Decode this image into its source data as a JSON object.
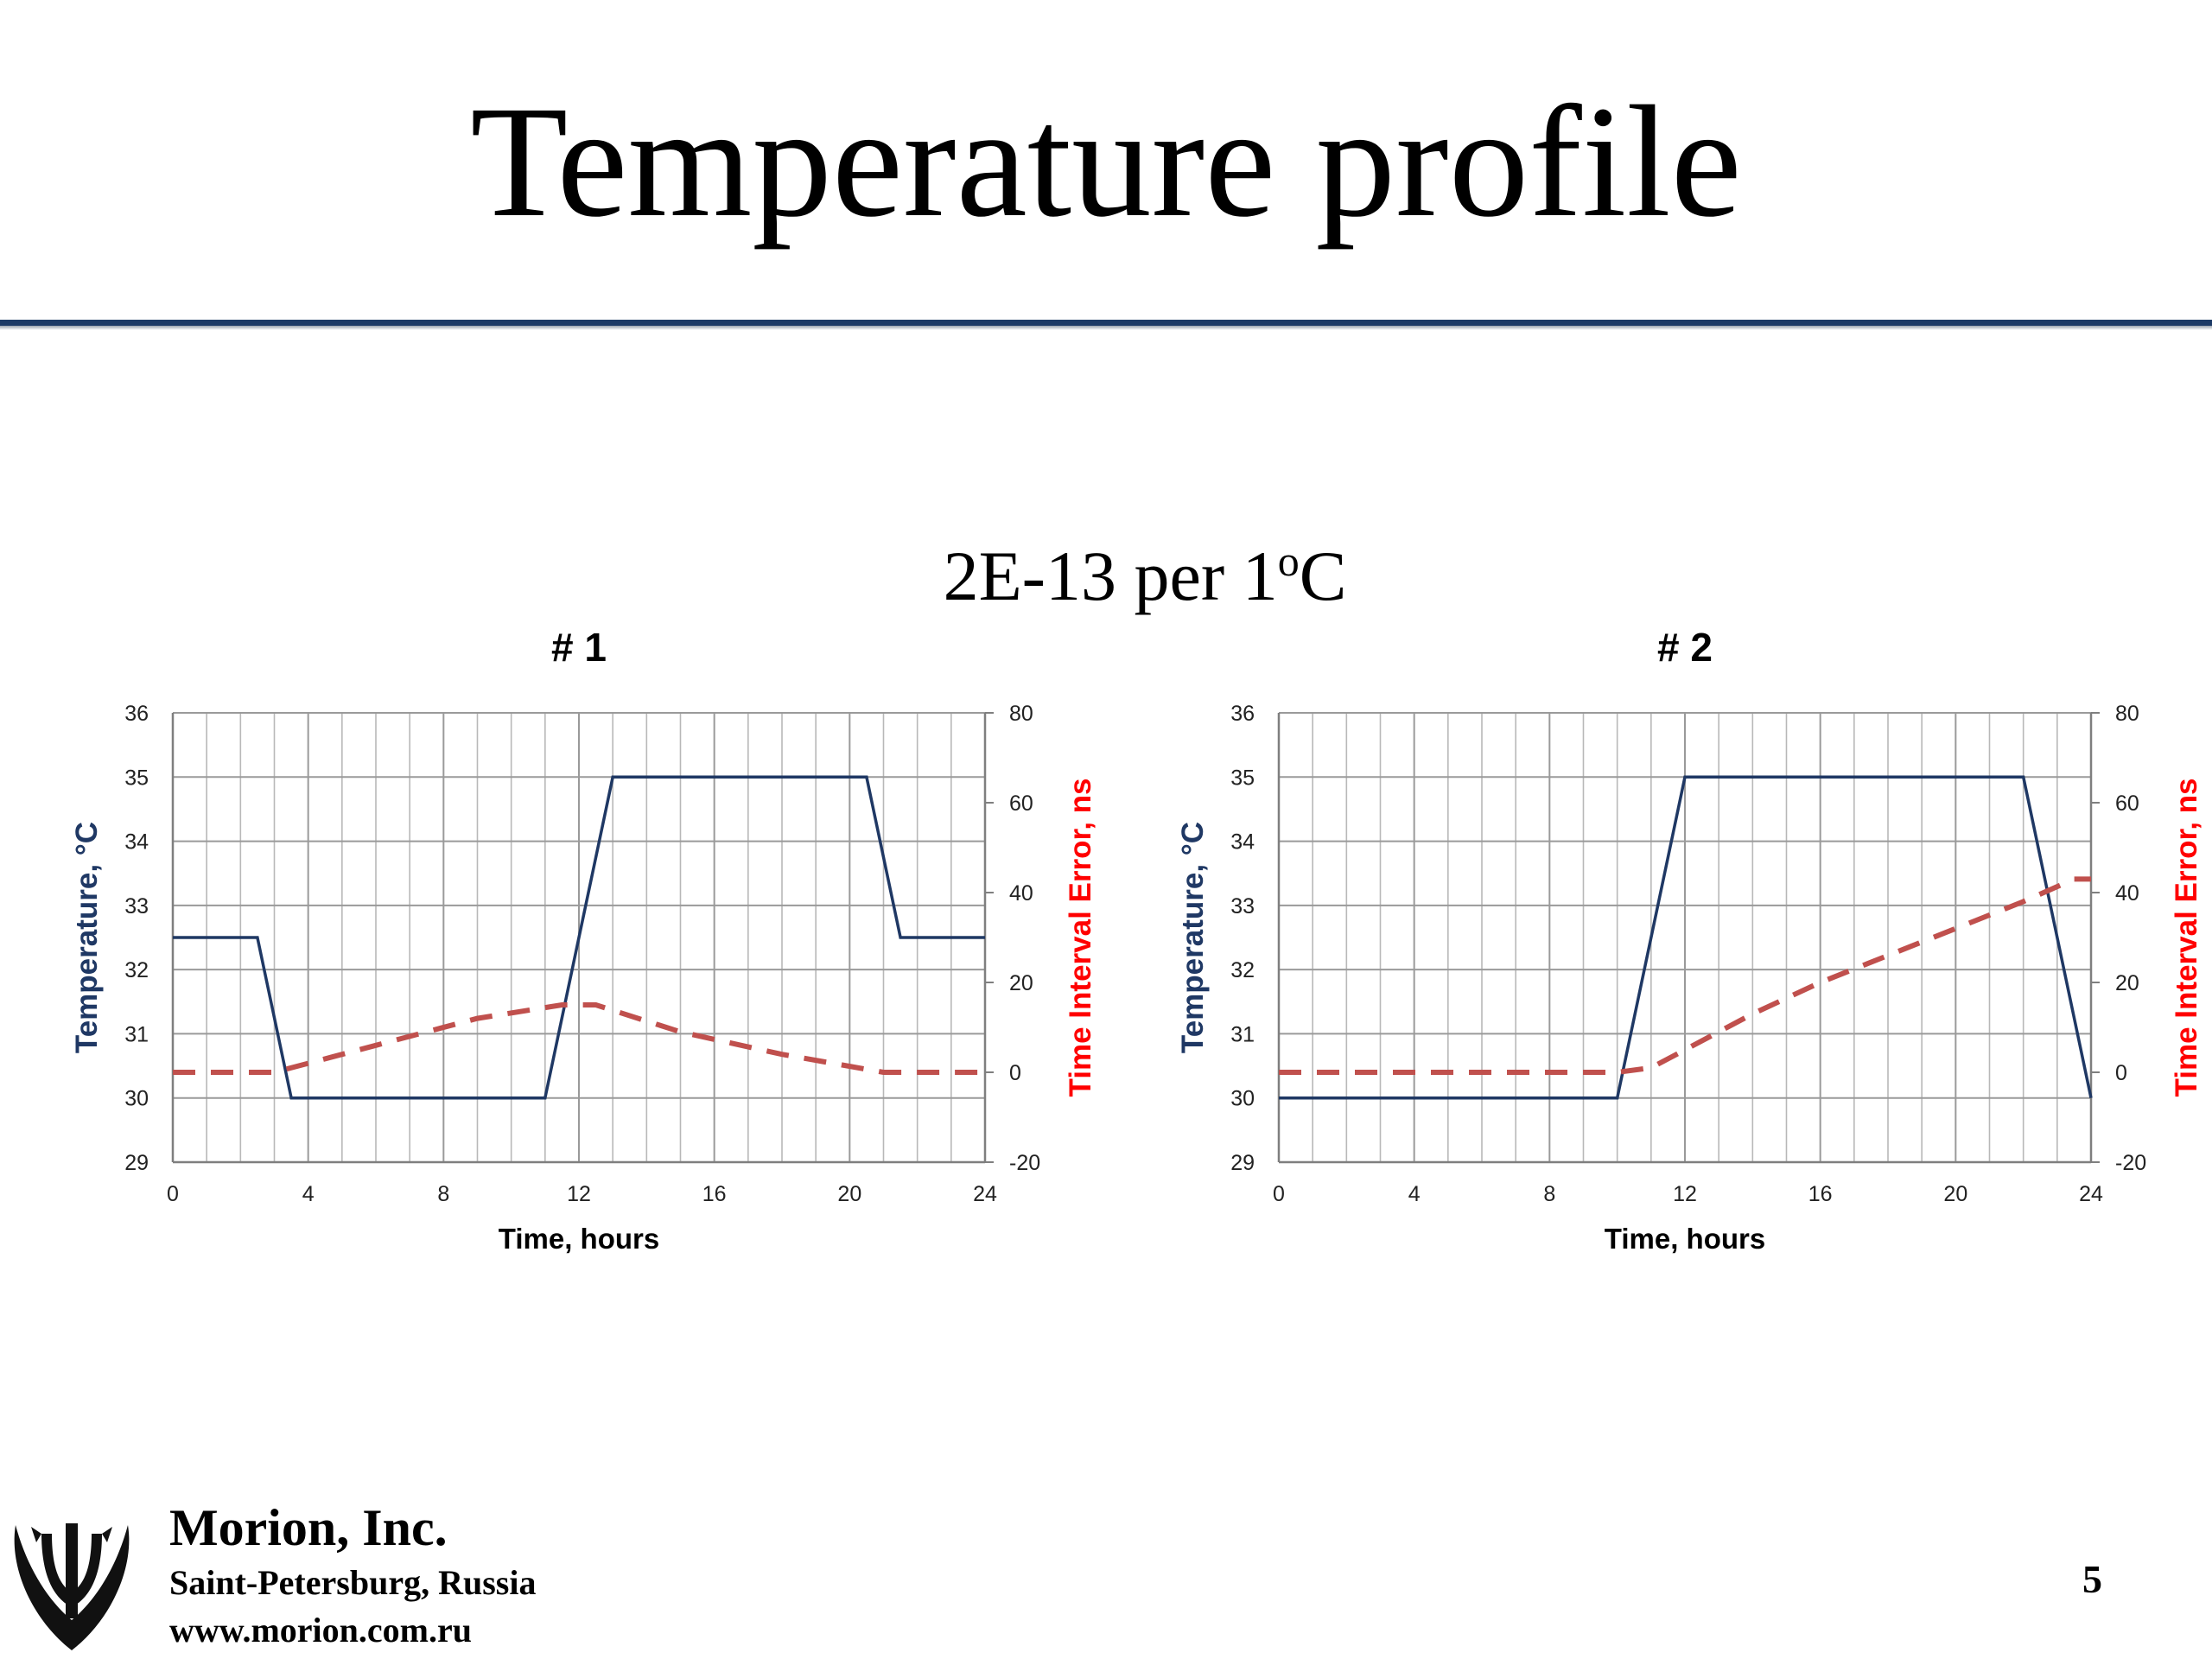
{
  "slide": {
    "title": "Temperature profile",
    "subtitle_main": "2E-13 per 1",
    "subtitle_sup": "o",
    "subtitle_unit": "C",
    "page_number": "5"
  },
  "footer": {
    "company": "Morion, Inc.",
    "city": "Saint-Petersburg, Russia",
    "url": "www.morion.com.ru"
  },
  "colors": {
    "temperature_line": "#1f3864",
    "error_line": "#c0504d",
    "right_axis_label": "#ff0000",
    "grid": "#b8b8b8",
    "title_rule": "#1c3a66"
  },
  "chart_data": [
    {
      "type": "line",
      "title": "# 1",
      "xlabel": "Time, hours",
      "ylabel_left": "Temperature, °C",
      "ylabel_right": "Time Interval Error, ns",
      "xlim": [
        0,
        24
      ],
      "ylim_left": [
        29,
        36
      ],
      "ylim_right": [
        -20,
        80
      ],
      "x_ticks": [
        0,
        4,
        8,
        12,
        16,
        20,
        24
      ],
      "y_ticks_left": [
        29,
        30,
        31,
        32,
        33,
        34,
        35,
        36
      ],
      "y_ticks_right": [
        -20,
        0,
        20,
        40,
        60,
        80
      ],
      "grid": true,
      "legend": "none",
      "series": [
        {
          "axis": "left",
          "style": "solid",
          "x": [
            0,
            2.5,
            3.5,
            11,
            13,
            20.5,
            21.5,
            24
          ],
          "y": [
            32.5,
            32.5,
            30,
            30,
            35,
            35,
            32.5,
            32.5
          ]
        },
        {
          "axis": "right",
          "style": "dashed",
          "x": [
            0,
            3,
            6,
            9,
            11.5,
            12.5,
            15,
            18,
            21,
            24
          ],
          "y": [
            0,
            0,
            6,
            12,
            15,
            15,
            9,
            4,
            0,
            0
          ]
        }
      ]
    },
    {
      "type": "line",
      "title": "# 2",
      "xlabel": "Time, hours",
      "ylabel_left": "Temperature, °C",
      "ylabel_right": "Time Interval Error, ns",
      "xlim": [
        0,
        24
      ],
      "ylim_left": [
        29,
        36
      ],
      "ylim_right": [
        -20,
        80
      ],
      "x_ticks": [
        0,
        4,
        8,
        12,
        16,
        20,
        24
      ],
      "y_ticks_left": [
        29,
        30,
        31,
        32,
        33,
        34,
        35,
        36
      ],
      "y_ticks_right": [
        -20,
        0,
        20,
        40,
        60,
        80
      ],
      "grid": true,
      "legend": "none",
      "series": [
        {
          "axis": "left",
          "style": "solid",
          "x": [
            0,
            10,
            12,
            22,
            24
          ],
          "y": [
            30,
            30,
            35,
            35,
            30
          ]
        },
        {
          "axis": "right",
          "style": "dashed",
          "x": [
            0,
            10,
            11,
            12,
            14,
            16,
            18,
            20,
            22,
            23.5,
            24
          ],
          "y": [
            0,
            0,
            1,
            5,
            13,
            20,
            26,
            32,
            38,
            43,
            43
          ]
        }
      ]
    }
  ]
}
